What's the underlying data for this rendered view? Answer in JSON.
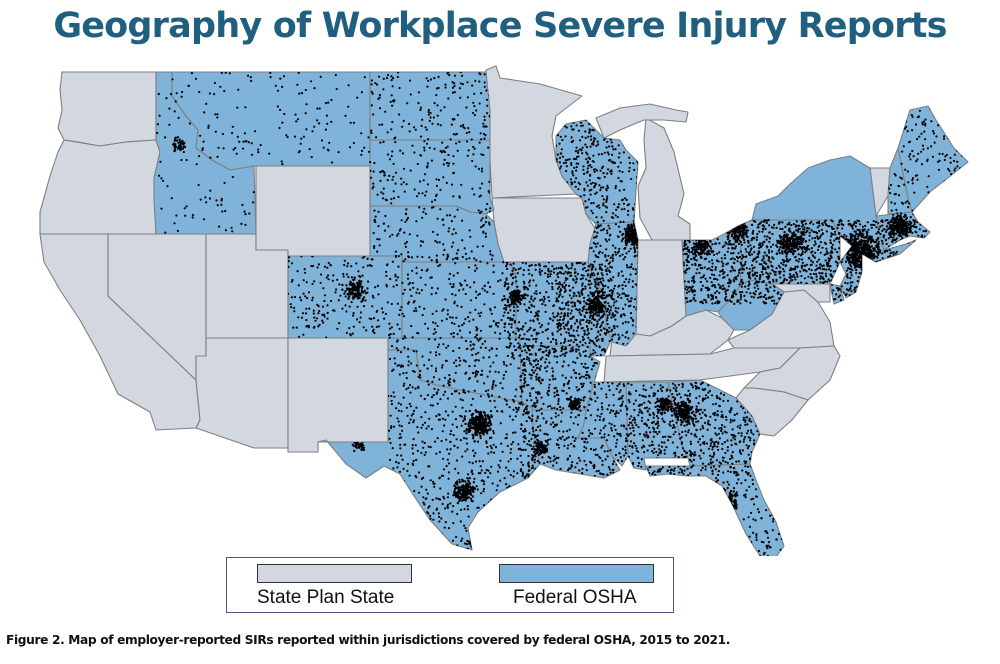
{
  "title": "Geography of Workplace Severe Injury Reports",
  "caption": "Figure 2. Map of employer-reported SIRs reported within jurisdictions covered by federal OSHA, 2015 to 2021.",
  "colors": {
    "state_plan": "#d3d8e0",
    "federal_osha": "#7fb3d9",
    "border": "#7d7f83",
    "dot": "#000000",
    "title": "#1f5f7f"
  },
  "legend": {
    "items": [
      {
        "key": "state_plan",
        "label": "State Plan State",
        "color": "#d3d8e0"
      },
      {
        "key": "federal_osha",
        "label": "Federal OSHA",
        "color": "#7fb3d9"
      }
    ]
  },
  "map": {
    "region": "Contiguous United States",
    "state_plan_states": [
      "Washington",
      "Oregon",
      "California",
      "Nevada",
      "Utah",
      "Arizona",
      "Wyoming",
      "New Mexico",
      "Minnesota",
      "Iowa",
      "Michigan",
      "Indiana",
      "Kentucky",
      "Tennessee",
      "Virginia",
      "North Carolina",
      "South Carolina",
      "Maryland",
      "Vermont"
    ],
    "federal_osha_states": [
      "Idaho",
      "Montana",
      "North Dakota",
      "South Dakota",
      "Nebraska",
      "Colorado",
      "Kansas",
      "Oklahoma",
      "Texas",
      "Missouri",
      "Arkansas",
      "Louisiana",
      "Mississippi",
      "Alabama",
      "Georgia",
      "Florida",
      "Wisconsin",
      "Illinois",
      "Ohio",
      "West Virginia",
      "Pennsylvania",
      "New York",
      "New Jersey",
      "Delaware",
      "Connecticut",
      "Rhode Island",
      "Massachusetts",
      "New Hampshire",
      "Maine"
    ],
    "points_description": "Each dot is an employer-reported severe injury report (SIR) within federal OSHA jurisdiction"
  }
}
